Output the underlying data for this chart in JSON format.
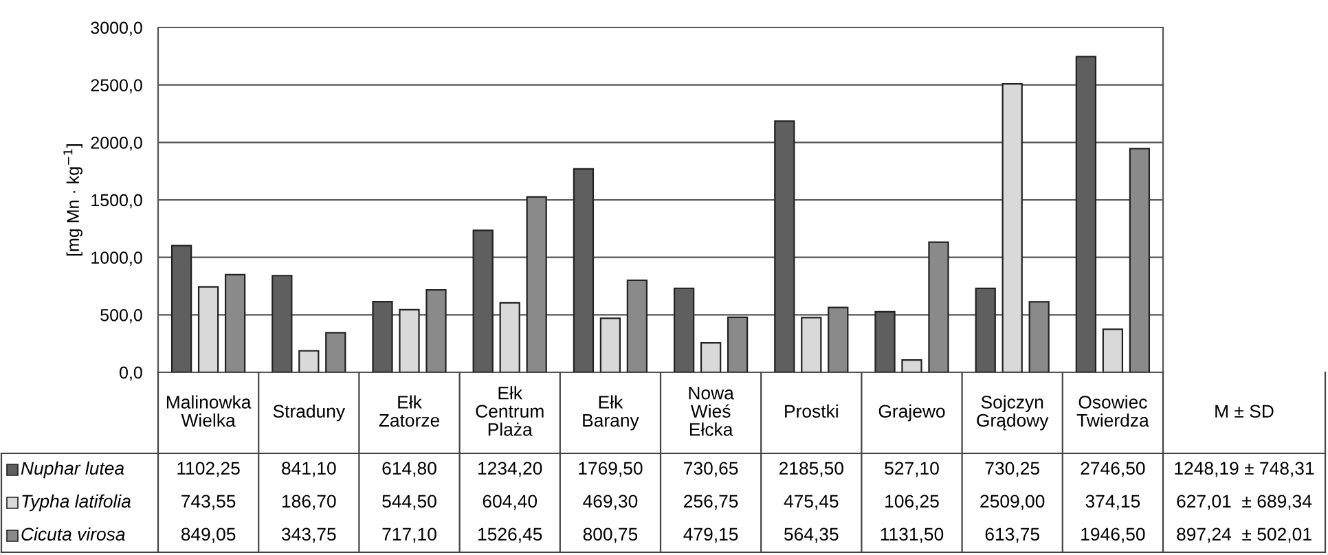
{
  "chart_data": {
    "type": "bar",
    "categories": [
      "Malinowka\nWielka",
      "Straduny",
      "Ełk\nZatorze",
      "Ełk\nCentrum\nPlaża",
      "Ełk\nBarany",
      "Nowa\nWieś\nEłcka",
      "Prostki",
      "Grajewo",
      "Sojczyn\nGrądowy",
      "Osowiec\nTwierdza",
      "M ± SD"
    ],
    "series": [
      {
        "name": "Nuphar lutea",
        "color": "#5f5f5f",
        "values": [
          1102.25,
          841.1,
          614.8,
          1234.2,
          1769.5,
          730.65,
          2185.5,
          527.1,
          730.25,
          2746.5,
          null
        ],
        "value_labels": [
          "1102,25",
          "841,10",
          "614,80",
          "1234,20",
          "1769,50",
          "730,65",
          "2185,50",
          "527,10",
          "730,25",
          "2746,50",
          "1248,19 ± 748,31"
        ]
      },
      {
        "name": "Typha latifolia",
        "color": "#d9d9d9",
        "values": [
          743.55,
          186.7,
          544.5,
          604.4,
          469.3,
          256.75,
          475.45,
          106.25,
          2509.0,
          374.15,
          null
        ],
        "value_labels": [
          "743,55",
          "186,70",
          "544,50",
          "604,40",
          "469,30",
          "256,75",
          "475,45",
          "106,25",
          "2509,00",
          "374,15",
          "627,01  ± 689,34"
        ]
      },
      {
        "name": "Cicuta virosa",
        "color": "#8a8a8a",
        "values": [
          849.05,
          343.75,
          717.1,
          1526.45,
          800.75,
          479.15,
          564.35,
          1131.5,
          613.75,
          1946.5,
          null
        ],
        "value_labels": [
          "849,05",
          "343,75",
          "717,10",
          "1526,45",
          "800,75",
          "479,15",
          "564,35",
          "1131,50",
          "613,75",
          "1946,50",
          "897,24  ± 502,01"
        ]
      }
    ],
    "ylabel": "[mg Mn · kg$^{−1}$]",
    "ylim": [
      0,
      3000
    ],
    "yticks": [
      {
        "value": 0,
        "label": "0,0"
      },
      {
        "value": 500,
        "label": "500,0"
      },
      {
        "value": 1000,
        "label": "1000,0"
      },
      {
        "value": 1500,
        "label": "1500,0"
      },
      {
        "value": 2000,
        "label": "2000,0"
      },
      {
        "value": 2500,
        "label": "2500,0"
      },
      {
        "value": 3000,
        "label": "3000,0"
      }
    ],
    "grid": "y",
    "legend": "bottom left"
  }
}
